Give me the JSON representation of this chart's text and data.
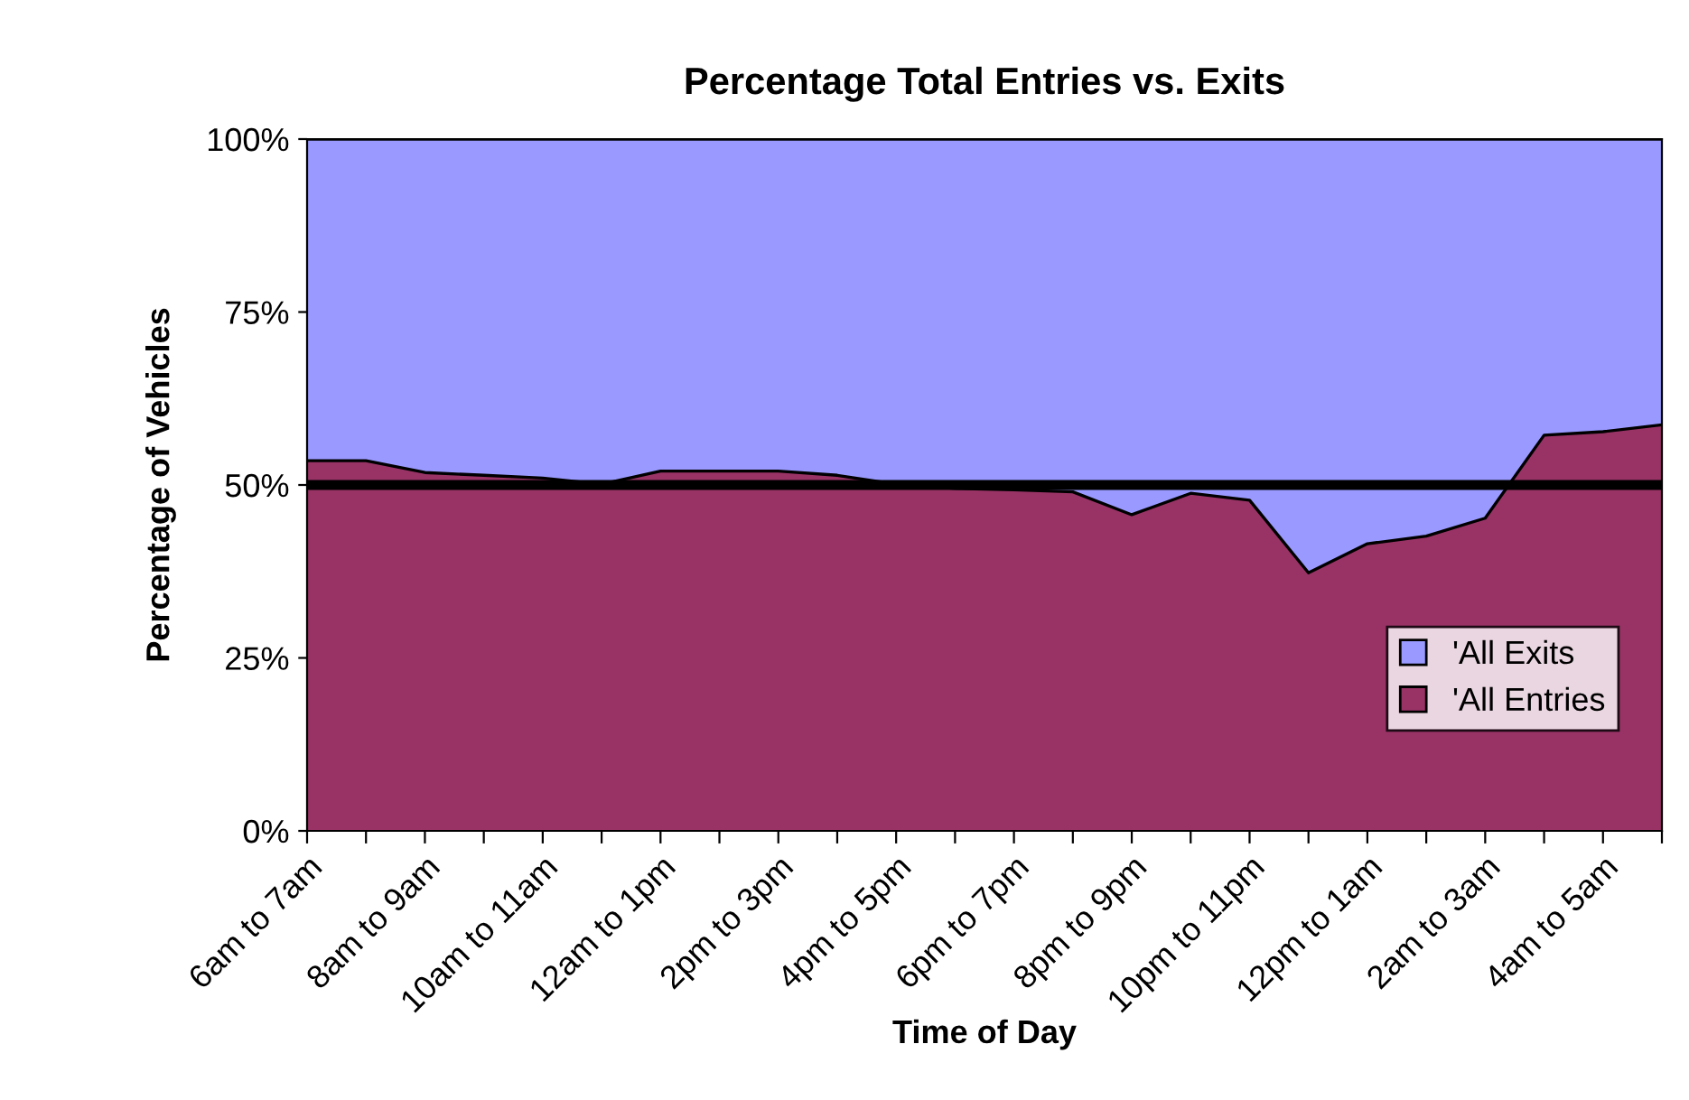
{
  "chart_data": {
    "type": "area",
    "stacked": true,
    "title": "Percentage Total Entries vs. Exits",
    "xlabel": "Time of Day",
    "ylabel": "Percentage of Vehicles",
    "categories": [
      "6am to 7am",
      null,
      "8am to 9am",
      null,
      "10am to 11am",
      null,
      "12am to 1pm",
      null,
      "2pm to 3pm",
      null,
      "4pm to 5pm",
      null,
      "6pm to 7pm",
      null,
      "8pm to 9pm",
      null,
      "10pm to 11pm",
      null,
      "12pm to 1am",
      null,
      "2am to 3am",
      null,
      "4am to 5am",
      null
    ],
    "series": [
      {
        "name": "'All Entries",
        "color": "#993366",
        "values": [
          53.5,
          53.5,
          51.8,
          51.4,
          51,
          50.1,
          52,
          52,
          52,
          51.4,
          50.1,
          49.5,
          49.3,
          49,
          45.7,
          48.8,
          47.8,
          37.3,
          41.5,
          42.6,
          45.2,
          57.2,
          57.7,
          58.7
        ]
      },
      {
        "name": "'All Exits",
        "color": "#9999ff",
        "values": [
          46.5,
          46.5,
          48.2,
          48.6,
          49,
          49.9,
          48,
          48,
          48,
          48.6,
          49.9,
          50.5,
          50.7,
          51,
          54.3,
          51.2,
          52.2,
          62.7,
          58.5,
          57.4,
          54.8,
          42.8,
          42.3,
          41.3
        ]
      }
    ],
    "ylim": [
      0,
      100
    ],
    "yticks": [
      {
        "value": 0,
        "label": "0%"
      },
      {
        "value": 25,
        "label": "25%"
      },
      {
        "value": 50,
        "label": "50%"
      },
      {
        "value": 75,
        "label": "75%"
      },
      {
        "value": 100,
        "label": "100%"
      }
    ],
    "ref_lines": [
      {
        "axis": "y",
        "value": 50,
        "color": "#000000"
      }
    ],
    "legend": "right",
    "grid": false
  }
}
